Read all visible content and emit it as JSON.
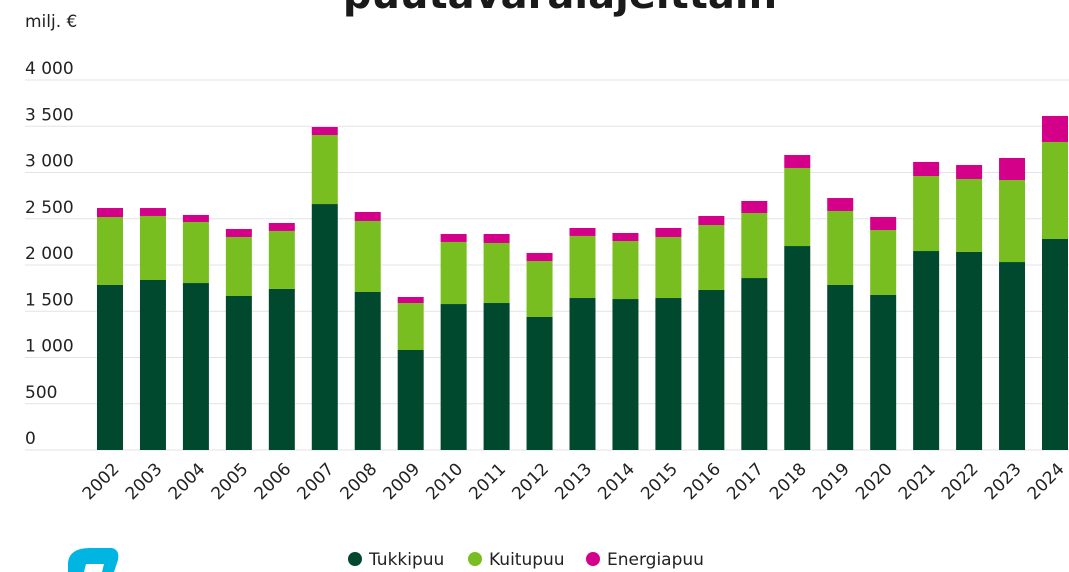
{
  "chart_data": {
    "type": "stacked_bar",
    "title": "puutavaralajeittain",
    "y_label": "milj. €",
    "categories": [
      "2002",
      "2003",
      "2004",
      "2005",
      "2006",
      "2007",
      "2008",
      "2009",
      "2010",
      "2011",
      "2012",
      "2013",
      "2014",
      "2015",
      "2016",
      "2017",
      "2018",
      "2019",
      "2020",
      "2021",
      "2022",
      "2023",
      "2024"
    ],
    "series": [
      {
        "name": "Tukkipuu",
        "color": "#00482e",
        "values": [
          1784,
          1838,
          1805,
          1665,
          1741,
          2659,
          1708,
          1081,
          1578,
          1589,
          1438,
          1643,
          1632,
          1643,
          1730,
          1859,
          2205,
          1784,
          1676,
          2151,
          2141,
          2032,
          2281
        ]
      },
      {
        "name": "Kuitupuu",
        "color": "#78be20",
        "values": [
          735,
          692,
          660,
          638,
          627,
          746,
          768,
          508,
          671,
          649,
          605,
          671,
          627,
          660,
          702,
          703,
          844,
          800,
          702,
          811,
          789,
          887,
          1049
        ]
      },
      {
        "name": "Energiapuu",
        "color": "#d4008a",
        "values": [
          97,
          86,
          76,
          86,
          86,
          87,
          97,
          65,
          86,
          97,
          87,
          86,
          87,
          97,
          98,
          130,
          140,
          140,
          141,
          152,
          151,
          238,
          281
        ]
      }
    ],
    "ylim": [
      0,
      4000
    ],
    "yticks": [
      0,
      500,
      {
        "value": 1000,
        "label": "1 000"
      },
      {
        "value": 1500,
        "label": "1 500"
      },
      {
        "value": 2000,
        "label": "2 000"
      },
      {
        "value": 2500,
        "label": "2 500"
      },
      {
        "value": 3000,
        "label": "3 000"
      },
      {
        "value": 3500,
        "label": "3 500"
      },
      {
        "value": 4000,
        "label": "4 000"
      }
    ],
    "grid": true,
    "legend": "bottom"
  }
}
